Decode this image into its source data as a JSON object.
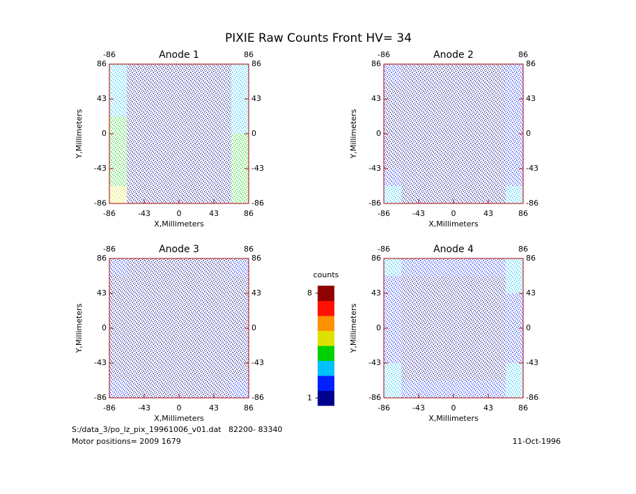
{
  "title": "PIXIE Raw Counts Front HV= 34",
  "chart_data": [
    {
      "type": "heatmap",
      "title": "Anode 1",
      "xlabel": "X,Millimeters",
      "ylabel": "Y,Millimeters",
      "xlim": [
        -86,
        86
      ],
      "ylim": [
        -86,
        86
      ],
      "xticks": [
        -86,
        -43,
        0,
        43,
        86
      ],
      "x2ticks": [
        -86,
        86
      ],
      "yticks": [
        -86,
        -43,
        0,
        43,
        86
      ],
      "y2ticks": [
        -86,
        -43,
        0,
        43,
        86
      ],
      "z": [
        [
          3,
          1,
          1,
          1,
          1,
          1,
          1,
          3
        ],
        [
          3,
          1,
          1,
          1,
          1,
          1,
          1,
          3
        ],
        [
          3,
          1,
          1,
          1,
          1,
          1,
          1,
          3
        ],
        [
          4,
          1,
          1,
          1,
          1,
          1,
          1,
          3
        ],
        [
          4,
          1,
          1,
          1,
          1,
          1,
          1,
          4
        ],
        [
          4,
          1,
          1,
          1,
          1,
          1,
          1,
          4
        ],
        [
          4,
          1,
          1,
          1,
          1,
          1,
          1,
          4
        ],
        [
          5,
          1,
          1,
          1,
          1,
          1,
          1,
          4
        ]
      ]
    },
    {
      "type": "heatmap",
      "title": "Anode 2",
      "xlabel": "X,Millimeters",
      "ylabel": "Y,Millimeters",
      "xlim": [
        -86,
        86
      ],
      "ylim": [
        -86,
        86
      ],
      "xticks": [
        -86,
        -43,
        0,
        43,
        86
      ],
      "x2ticks": [
        -86,
        86
      ],
      "yticks": [
        -86,
        -43,
        0,
        43,
        86
      ],
      "y2ticks": [
        -86,
        -43,
        0,
        43,
        86
      ],
      "z": [
        [
          2,
          1,
          1,
          1,
          1,
          1,
          1,
          2
        ],
        [
          1,
          1,
          1,
          1,
          1,
          1,
          1,
          2
        ],
        [
          1,
          1,
          1,
          1,
          1,
          1,
          1,
          2
        ],
        [
          1,
          1,
          1,
          1,
          1,
          1,
          1,
          2
        ],
        [
          1,
          1,
          1,
          1,
          1,
          1,
          1,
          2
        ],
        [
          1,
          1,
          1,
          1,
          1,
          1,
          1,
          2
        ],
        [
          2,
          1,
          1,
          1,
          1,
          1,
          1,
          2
        ],
        [
          3,
          1,
          1,
          1,
          1,
          1,
          1,
          3
        ]
      ]
    },
    {
      "type": "heatmap",
      "title": "Anode 3",
      "xlabel": "X,Millimeters",
      "ylabel": "Y,Millimeters",
      "xlim": [
        -86,
        86
      ],
      "ylim": [
        -86,
        86
      ],
      "xticks": [
        -86,
        -43,
        0,
        43,
        86
      ],
      "x2ticks": [
        -86,
        86
      ],
      "yticks": [
        -86,
        -43,
        0,
        43,
        86
      ],
      "y2ticks": [
        -86,
        -43,
        0,
        43,
        86
      ],
      "z": [
        [
          2,
          1,
          1,
          1,
          1,
          1,
          1,
          2
        ],
        [
          1,
          1,
          1,
          1,
          1,
          1,
          1,
          1
        ],
        [
          1,
          1,
          1,
          1,
          1,
          1,
          1,
          1
        ],
        [
          1,
          1,
          1,
          1,
          1,
          1,
          1,
          1
        ],
        [
          1,
          1,
          1,
          1,
          1,
          1,
          1,
          1
        ],
        [
          1,
          1,
          1,
          1,
          1,
          1,
          1,
          1
        ],
        [
          1,
          1,
          1,
          1,
          1,
          1,
          1,
          1
        ],
        [
          2,
          1,
          1,
          1,
          1,
          1,
          1,
          2
        ]
      ]
    },
    {
      "type": "heatmap",
      "title": "Anode 4",
      "xlabel": "X,Millimeters",
      "ylabel": "Y,Millimeters",
      "xlim": [
        -86,
        86
      ],
      "ylim": [
        -86,
        86
      ],
      "xticks": [
        -86,
        -43,
        0,
        43,
        86
      ],
      "x2ticks": [
        -86,
        86
      ],
      "yticks": [
        -86,
        -43,
        0,
        43,
        86
      ],
      "y2ticks": [
        -86,
        -43,
        0,
        43,
        86
      ],
      "z": [
        [
          3,
          2,
          2,
          2,
          2,
          2,
          2,
          3
        ],
        [
          2,
          1,
          1,
          1,
          1,
          1,
          1,
          3
        ],
        [
          2,
          1,
          1,
          1,
          1,
          1,
          1,
          2
        ],
        [
          2,
          1,
          1,
          1,
          1,
          1,
          1,
          2
        ],
        [
          2,
          1,
          1,
          1,
          1,
          1,
          1,
          2
        ],
        [
          2,
          1,
          1,
          1,
          1,
          1,
          1,
          2
        ],
        [
          3,
          1,
          1,
          1,
          1,
          1,
          1,
          3
        ],
        [
          3,
          2,
          2,
          2,
          2,
          2,
          2,
          3
        ]
      ]
    }
  ],
  "colorbar": {
    "label": "counts",
    "zlim": [
      1,
      8
    ],
    "zticks": [
      1,
      8
    ],
    "colorscale": [
      "#000090",
      "#0020ff",
      "#00c0ff",
      "#00d000",
      "#e0e000",
      "#ff9000",
      "#ff1000",
      "#900000"
    ]
  },
  "footer": {
    "file": "S:/data_3/po_lz_pix_19961006_v01.dat   82200- 83340",
    "motor": "Motor positions= 2009 1679",
    "date": "11-Oct-1996"
  }
}
